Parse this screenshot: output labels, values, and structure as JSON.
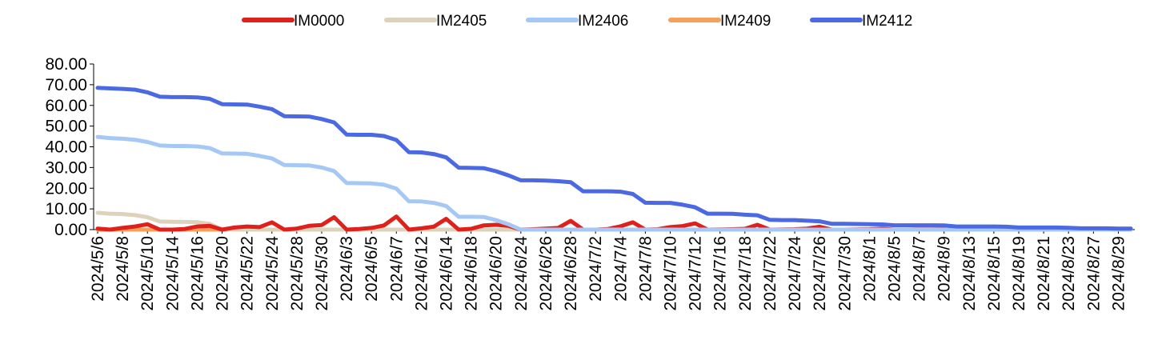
{
  "chart_data": {
    "type": "line",
    "title": "",
    "xlabel": "",
    "ylabel": "",
    "ylim": [
      0,
      80
    ],
    "yticks": [
      "0.00",
      "10.00",
      "20.00",
      "30.00",
      "40.00",
      "50.00",
      "60.00",
      "70.00",
      "80.00"
    ],
    "legend_position": "top",
    "x": [
      "2024/5/6",
      "2024/5/7",
      "2024/5/8",
      "2024/5/9",
      "2024/5/10",
      "2024/5/13",
      "2024/5/14",
      "2024/5/15",
      "2024/5/16",
      "2024/5/17",
      "2024/5/20",
      "2024/5/21",
      "2024/5/22",
      "2024/5/23",
      "2024/5/24",
      "2024/5/27",
      "2024/5/28",
      "2024/5/29",
      "2024/5/30",
      "2024/5/31",
      "2024/6/3",
      "2024/6/4",
      "2024/6/5",
      "2024/6/6",
      "2024/6/7",
      "2024/6/11",
      "2024/6/12",
      "2024/6/13",
      "2024/6/14",
      "2024/6/17",
      "2024/6/18",
      "2024/6/19",
      "2024/6/20",
      "2024/6/21",
      "2024/6/24",
      "2024/6/25",
      "2024/6/26",
      "2024/6/27",
      "2024/6/28",
      "2024/7/1",
      "2024/7/2",
      "2024/7/3",
      "2024/7/4",
      "2024/7/5",
      "2024/7/8",
      "2024/7/9",
      "2024/7/10",
      "2024/7/11",
      "2024/7/12",
      "2024/7/15",
      "2024/7/16",
      "2024/7/17",
      "2024/7/18",
      "2024/7/19",
      "2024/7/22",
      "2024/7/23",
      "2024/7/24",
      "2024/7/25",
      "2024/7/26",
      "2024/7/29",
      "2024/7/30",
      "2024/7/31",
      "2024/8/1",
      "2024/8/2",
      "2024/8/5",
      "2024/8/6",
      "2024/8/7",
      "2024/8/8",
      "2024/8/9",
      "2024/8/12",
      "2024/8/13",
      "2024/8/14",
      "2024/8/15",
      "2024/8/16",
      "2024/8/19",
      "2024/8/20",
      "2024/8/21",
      "2024/8/22",
      "2024/8/23",
      "2024/8/26",
      "2024/8/27",
      "2024/8/28",
      "2024/8/29",
      "2024/8/30"
    ],
    "tick_labels": [
      "2024/5/6",
      "2024/5/8",
      "2024/5/10",
      "2024/5/14",
      "2024/5/16",
      "2024/5/20",
      "2024/5/22",
      "2024/5/24",
      "2024/5/28",
      "2024/5/30",
      "2024/6/3",
      "2024/6/5",
      "2024/6/7",
      "2024/6/12",
      "2024/6/14",
      "2024/6/18",
      "2024/6/20",
      "2024/6/24",
      "2024/6/26",
      "2024/6/28",
      "2024/7/2",
      "2024/7/4",
      "2024/7/8",
      "2024/7/10",
      "2024/7/12",
      "2024/7/16",
      "2024/7/18",
      "2024/7/22",
      "2024/7/24",
      "2024/7/26",
      "2024/7/30",
      "2024/8/1",
      "2024/8/5",
      "2024/8/7",
      "2024/8/9",
      "2024/8/13",
      "2024/8/15",
      "2024/8/19",
      "2024/8/21",
      "2024/8/23",
      "2024/8/27",
      "2024/8/29"
    ],
    "series": [
      {
        "name": "IM0000",
        "color": "#e0201b",
        "values": [
          0.5,
          0,
          0.8,
          1.5,
          2.6,
          0,
          0,
          0.3,
          1.5,
          1.8,
          0,
          1,
          1.5,
          1.2,
          3.5,
          0,
          0.5,
          1.8,
          2.2,
          6,
          0,
          0.3,
          0.8,
          2,
          6.3,
          0,
          0.6,
          1.4,
          5.2,
          0,
          0.4,
          2,
          2.3,
          1.8,
          0,
          0.2,
          0.5,
          0.8,
          4.2,
          0,
          0,
          0.3,
          1.6,
          3.5,
          0,
          0.2,
          1.2,
          1.7,
          3,
          0,
          0.1,
          0.2,
          0.4,
          2.3,
          0,
          0.1,
          0.2,
          0.5,
          1.4,
          0,
          0,
          0.1,
          0.2,
          0.5,
          0,
          0,
          0.1,
          0.1,
          0.2,
          0,
          0,
          0.1,
          0.1,
          0.1,
          0,
          0,
          0.1,
          0.1,
          0.1,
          0,
          0,
          0,
          0.1,
          0.1
        ]
      },
      {
        "name": "IM2405",
        "color": "#ddd3bb",
        "values": [
          8.1,
          7.7,
          7.5,
          7,
          6,
          3.9,
          3.8,
          3.7,
          3.6,
          2.8,
          0,
          0,
          0,
          0,
          0,
          0,
          0,
          0,
          0,
          0,
          0,
          0,
          0,
          0,
          0,
          0,
          0,
          0,
          0,
          0,
          0,
          0,
          0,
          0,
          0,
          0,
          0,
          0,
          0,
          0,
          0,
          0,
          0,
          0,
          0,
          0,
          0,
          0,
          0,
          0,
          0,
          0,
          0,
          0,
          0,
          0,
          0,
          0,
          0,
          0,
          0,
          0,
          0,
          0,
          0,
          0,
          0,
          0,
          0,
          0,
          0,
          0,
          0,
          0,
          0,
          0,
          0,
          0,
          0,
          0,
          0,
          0,
          0,
          0
        ]
      },
      {
        "name": "IM2406",
        "color": "#a6c8f5",
        "values": [
          44.8,
          44.2,
          43.9,
          43.4,
          42.3,
          40.6,
          40.4,
          40.4,
          40.2,
          39.4,
          36.8,
          36.7,
          36.6,
          35.6,
          34.4,
          31.2,
          31.1,
          31,
          30,
          28.3,
          22.5,
          22.4,
          22.3,
          21.7,
          19.8,
          13.7,
          13.6,
          12.9,
          11.4,
          6.2,
          6.2,
          6.1,
          4.6,
          2.6,
          0,
          0,
          0,
          0,
          0,
          0,
          0,
          0,
          0,
          0,
          0,
          0,
          0,
          0,
          0,
          0,
          0,
          0,
          0,
          0,
          0,
          0,
          0,
          0,
          0,
          0,
          0,
          0,
          0,
          0,
          0,
          0,
          0,
          0,
          0,
          0,
          0,
          0,
          0,
          0,
          0,
          0,
          0,
          0,
          0,
          0,
          0,
          0,
          0,
          0
        ]
      },
      {
        "name": "IM2409",
        "color": "#f7a05a",
        "values": [
          0,
          0,
          0,
          0,
          0,
          0,
          0,
          0,
          0,
          0,
          0,
          0,
          0,
          0,
          0,
          0,
          0,
          0,
          0,
          0,
          0,
          0,
          0,
          0,
          0,
          0,
          0,
          0,
          0,
          0,
          0,
          0,
          0,
          0,
          0,
          0,
          0,
          0,
          0,
          0,
          0,
          0,
          0,
          0,
          0,
          0,
          0,
          0,
          0,
          0,
          0,
          0,
          0,
          0,
          0,
          0,
          0,
          0,
          0,
          0,
          0,
          0,
          0,
          0,
          0,
          0,
          0,
          0,
          0,
          0,
          0,
          0,
          0,
          0,
          0,
          0,
          0,
          0,
          0,
          0,
          0,
          0,
          0,
          0
        ]
      },
      {
        "name": "IM2412",
        "color": "#4a69e2",
        "values": [
          68.5,
          68.2,
          68,
          67.6,
          66.3,
          64.2,
          64,
          64,
          63.9,
          63.2,
          60.6,
          60.5,
          60.4,
          59.4,
          58.2,
          54.8,
          54.7,
          54.6,
          53.4,
          51.8,
          45.9,
          45.8,
          45.8,
          45.2,
          43.3,
          37.4,
          37.3,
          36.5,
          34.9,
          29.9,
          29.8,
          29.7,
          28.2,
          26.2,
          23.8,
          23.8,
          23.7,
          23.4,
          22.9,
          18.5,
          18.5,
          18.5,
          18.3,
          17.2,
          13,
          12.9,
          12.9,
          12,
          10.8,
          7.7,
          7.7,
          7.6,
          7.2,
          6.9,
          4.7,
          4.6,
          4.6,
          4.3,
          4,
          2.8,
          2.8,
          2.7,
          2.6,
          2.5,
          2.1,
          2.1,
          2.1,
          2.1,
          2,
          1.5,
          1.5,
          1.5,
          1.5,
          1.4,
          1,
          1,
          1,
          1,
          0.9,
          0.6,
          0.6,
          0.6,
          0.5,
          0.5
        ]
      }
    ]
  }
}
